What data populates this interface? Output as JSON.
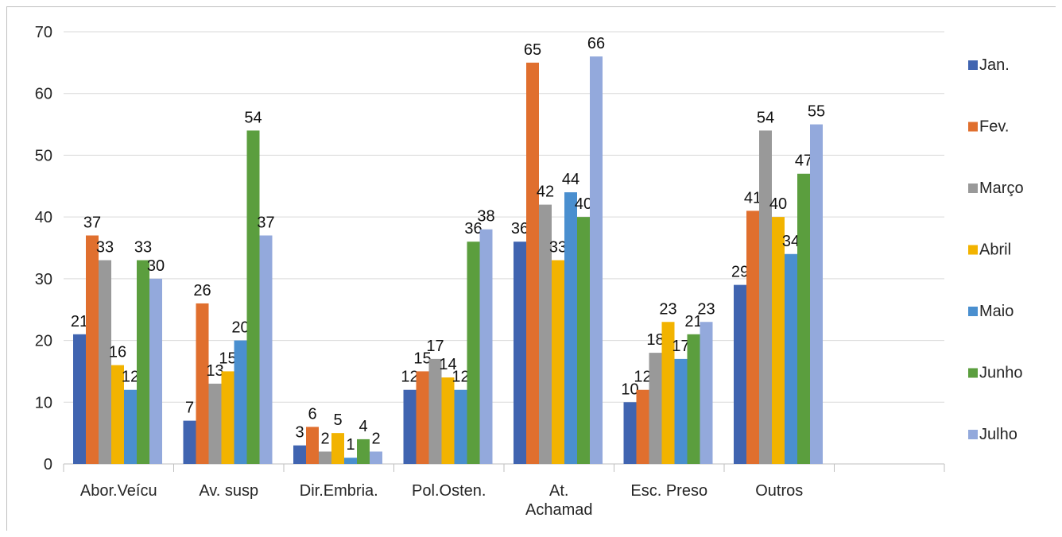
{
  "chart_data": {
    "type": "bar",
    "title": "",
    "xlabel": "",
    "ylabel": "",
    "ylim": [
      0,
      70
    ],
    "y_ticks": [
      0,
      10,
      20,
      30,
      40,
      50,
      60,
      70
    ],
    "grid": true,
    "legend_position": "right",
    "categories": [
      "Abor.Veícu",
      "Av. susp",
      "Dir.Embria.",
      "Pol.Osten.",
      "At.\nAchamad",
      "Esc. Preso",
      "Outros",
      ""
    ],
    "series": [
      {
        "name": "Jan.",
        "color": "#4064b0",
        "values": [
          21,
          7,
          3,
          12,
          36,
          10,
          29,
          null
        ]
      },
      {
        "name": "Fev.",
        "color": "#e06f2e",
        "values": [
          37,
          26,
          6,
          15,
          65,
          12,
          41,
          null
        ]
      },
      {
        "name": "Março",
        "color": "#999999",
        "values": [
          33,
          13,
          2,
          17,
          42,
          18,
          54,
          null
        ]
      },
      {
        "name": "Abril",
        "color": "#f2b300",
        "values": [
          16,
          15,
          5,
          14,
          33,
          23,
          40,
          null
        ]
      },
      {
        "name": "Maio",
        "color": "#4a8fcf",
        "values": [
          12,
          20,
          1,
          12,
          44,
          17,
          34,
          null
        ]
      },
      {
        "name": "Junho",
        "color": "#5b9e3e",
        "values": [
          33,
          54,
          4,
          36,
          40,
          21,
          47,
          null
        ]
      },
      {
        "name": "Julho",
        "color": "#93a9dc",
        "values": [
          30,
          37,
          2,
          38,
          66,
          23,
          55,
          null
        ]
      }
    ]
  }
}
